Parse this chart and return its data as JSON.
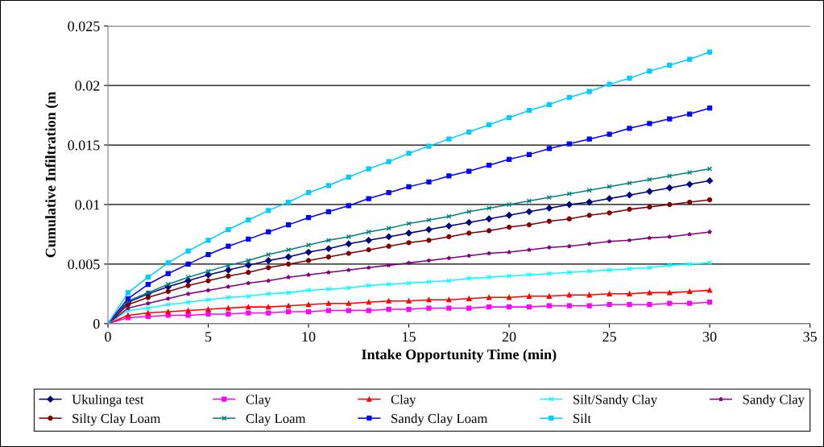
{
  "chart_data": {
    "type": "line",
    "xlabel": "Intake Opportunity Time (min)",
    "ylabel": "Cumulative Infiltration (m",
    "x": [
      0,
      1,
      2,
      3,
      4,
      5,
      6,
      7,
      8,
      9,
      10,
      11,
      12,
      13,
      14,
      15,
      16,
      17,
      18,
      19,
      20,
      21,
      22,
      23,
      24,
      25,
      26,
      27,
      28,
      29,
      30
    ],
    "xlim": [
      0,
      35
    ],
    "xticks": [
      0,
      5,
      10,
      15,
      20,
      25,
      30,
      35
    ],
    "ylim": [
      0,
      0.025
    ],
    "yticks": [
      0,
      0.005,
      0.01,
      0.015,
      0.02,
      0.025
    ],
    "grid": "y",
    "legend": "bottom",
    "line_style": "solid",
    "series": [
      {
        "name": "Ukulinga test",
        "color": "#000080",
        "marker": "diamond",
        "values": [
          0,
          0.0018,
          0.0025,
          0.0031,
          0.0036,
          0.0041,
          0.0045,
          0.0049,
          0.0053,
          0.0056,
          0.006,
          0.0063,
          0.0067,
          0.007,
          0.0073,
          0.0076,
          0.0079,
          0.0082,
          0.0085,
          0.0088,
          0.0091,
          0.0094,
          0.0097,
          0.01,
          0.0102,
          0.0105,
          0.0108,
          0.0111,
          0.0114,
          0.0117,
          0.012
        ]
      },
      {
        "name": "Clay",
        "color": "#ff00ff",
        "marker": "square",
        "values": [
          0,
          0.0005,
          0.0006,
          0.0007,
          0.0007,
          0.0008,
          0.0008,
          0.0009,
          0.0009,
          0.001,
          0.001,
          0.0011,
          0.0011,
          0.0011,
          0.0012,
          0.0012,
          0.0013,
          0.0013,
          0.0013,
          0.0014,
          0.0014,
          0.0014,
          0.0015,
          0.0015,
          0.0015,
          0.0016,
          0.0016,
          0.0016,
          0.0017,
          0.0017,
          0.0018
        ]
      },
      {
        "name": "Clay",
        "color": "#ff0000",
        "marker": "triangle",
        "values": [
          0,
          0.0007,
          0.0009,
          0.001,
          0.0011,
          0.0012,
          0.0013,
          0.0014,
          0.0014,
          0.0015,
          0.0016,
          0.0017,
          0.0017,
          0.0018,
          0.0019,
          0.0019,
          0.002,
          0.002,
          0.0021,
          0.0022,
          0.0022,
          0.0023,
          0.0023,
          0.0024,
          0.0024,
          0.0025,
          0.0025,
          0.0026,
          0.0026,
          0.0027,
          0.0028
        ]
      },
      {
        "name": "Silt/Sandy Clay",
        "color": "#00ffff",
        "marker": "cross",
        "values": [
          0,
          0.0011,
          0.0013,
          0.0016,
          0.0018,
          0.002,
          0.0022,
          0.0023,
          0.0025,
          0.0026,
          0.0028,
          0.0029,
          0.003,
          0.0032,
          0.0033,
          0.0034,
          0.0035,
          0.0036,
          0.0038,
          0.0039,
          0.004,
          0.0041,
          0.0042,
          0.0043,
          0.0044,
          0.0045,
          0.0046,
          0.0047,
          0.0049,
          0.005,
          0.0051
        ]
      },
      {
        "name": "Sandy Clay",
        "color": "#800080",
        "marker": "star",
        "values": [
          0,
          0.0013,
          0.0017,
          0.0021,
          0.0025,
          0.0028,
          0.0031,
          0.0034,
          0.0036,
          0.0039,
          0.0041,
          0.0043,
          0.0045,
          0.0047,
          0.0049,
          0.0051,
          0.0053,
          0.0055,
          0.0057,
          0.0059,
          0.006,
          0.0062,
          0.0064,
          0.0065,
          0.0067,
          0.0069,
          0.007,
          0.0072,
          0.0073,
          0.0075,
          0.0077
        ]
      },
      {
        "name": "Silty Clay Loam",
        "color": "#800000",
        "marker": "circle",
        "values": [
          0,
          0.0016,
          0.0022,
          0.0027,
          0.0032,
          0.0036,
          0.004,
          0.0043,
          0.0047,
          0.005,
          0.0053,
          0.0056,
          0.0059,
          0.0062,
          0.0065,
          0.0068,
          0.007,
          0.0073,
          0.0076,
          0.0078,
          0.0081,
          0.0083,
          0.0086,
          0.0088,
          0.0091,
          0.0093,
          0.0096,
          0.0098,
          0.01,
          0.0102,
          0.0104
        ]
      },
      {
        "name": "Clay Loam",
        "color": "#008080",
        "marker": "cross",
        "values": [
          0,
          0.0019,
          0.0026,
          0.0033,
          0.0039,
          0.0044,
          0.0049,
          0.0053,
          0.0058,
          0.0062,
          0.0066,
          0.007,
          0.0073,
          0.0077,
          0.008,
          0.0084,
          0.0087,
          0.009,
          0.0094,
          0.0097,
          0.01,
          0.0103,
          0.0106,
          0.0109,
          0.0112,
          0.0115,
          0.0118,
          0.0121,
          0.0124,
          0.0127,
          0.013
        ]
      },
      {
        "name": "Sandy Clay Loam",
        "color": "#0000ff",
        "marker": "square",
        "values": [
          0,
          0.0021,
          0.0033,
          0.0042,
          0.005,
          0.0058,
          0.0065,
          0.0071,
          0.0077,
          0.0083,
          0.0089,
          0.0094,
          0.0099,
          0.0105,
          0.011,
          0.0115,
          0.0119,
          0.0124,
          0.0128,
          0.0133,
          0.0138,
          0.0142,
          0.0147,
          0.0151,
          0.0155,
          0.0159,
          0.0164,
          0.0168,
          0.0172,
          0.0176,
          0.0181
        ]
      },
      {
        "name": "Silt",
        "color": "#00ccff",
        "marker": "square",
        "values": [
          0,
          0.0026,
          0.0039,
          0.0051,
          0.0061,
          0.007,
          0.0079,
          0.0087,
          0.0095,
          0.0102,
          0.011,
          0.0116,
          0.0123,
          0.013,
          0.0136,
          0.0143,
          0.0149,
          0.0155,
          0.0161,
          0.0167,
          0.0173,
          0.0179,
          0.0184,
          0.019,
          0.0195,
          0.0201,
          0.0206,
          0.0212,
          0.0217,
          0.0222,
          0.0228
        ]
      }
    ]
  }
}
